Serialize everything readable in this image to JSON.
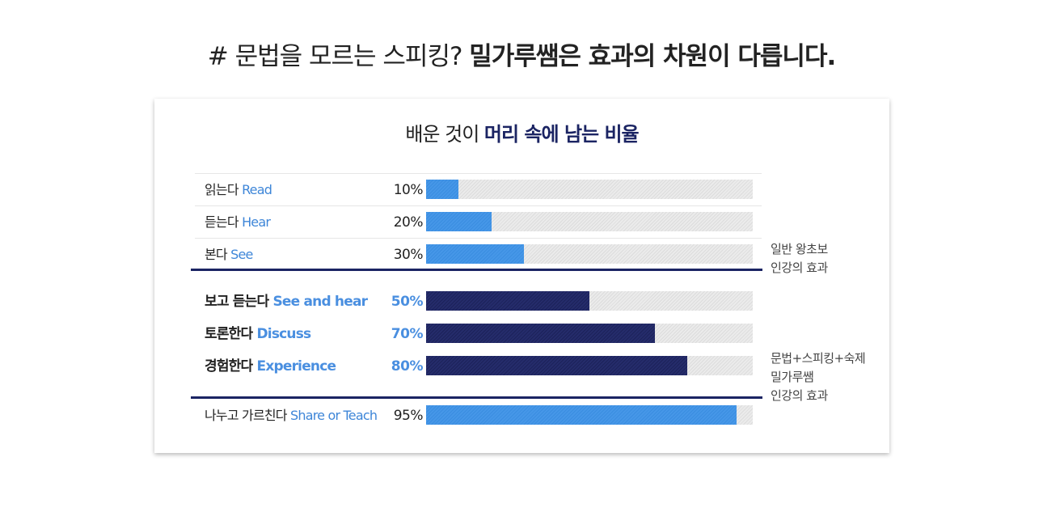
{
  "headline": {
    "prefix": "# 문법을 모르는 스피킹? ",
    "strong": "밀가루쌤은 효과의 차원이 다릅니다."
  },
  "chart_data": {
    "type": "bar",
    "orientation": "horizontal",
    "title_prefix": "배운 것이 ",
    "title_accent": "머리 속에 남는 비율",
    "xlim": [
      0,
      100
    ],
    "unit": "%",
    "rows": [
      {
        "ko": "읽는다",
        "en": "Read",
        "value": 10,
        "pct_label": "10%",
        "group": "general"
      },
      {
        "ko": "듣는다",
        "en": "Hear",
        "value": 20,
        "pct_label": "20%",
        "group": "general"
      },
      {
        "ko": "본다",
        "en": "See",
        "value": 30,
        "pct_label": "30%",
        "group": "general"
      },
      {
        "ko": "보고 듣는다",
        "en": "See and hear",
        "value": 50,
        "pct_label": "50%",
        "group": "mid"
      },
      {
        "ko": "토론한다",
        "en": "Discuss",
        "value": 70,
        "pct_label": "70%",
        "group": "mid"
      },
      {
        "ko": "경험한다",
        "en": "Experience",
        "value": 80,
        "pct_label": "80%",
        "group": "mid"
      },
      {
        "ko": "나누고 가르친다",
        "en": "Share or Teach",
        "value": 95,
        "pct_label": "95%",
        "group": "teach"
      }
    ],
    "annotations": {
      "general": [
        "일반 왕초보",
        "인강의 효과"
      ],
      "milgaru": [
        "문법+스피킹+숙제",
        "밀가루쌤",
        "인강의 효과"
      ]
    },
    "colors": {
      "light_bar": "#4697e8",
      "dark_bar": "#1c225a",
      "track": "#e6e6e6",
      "accent_text": "#1b2463",
      "english_label": "#3e86d8"
    }
  }
}
